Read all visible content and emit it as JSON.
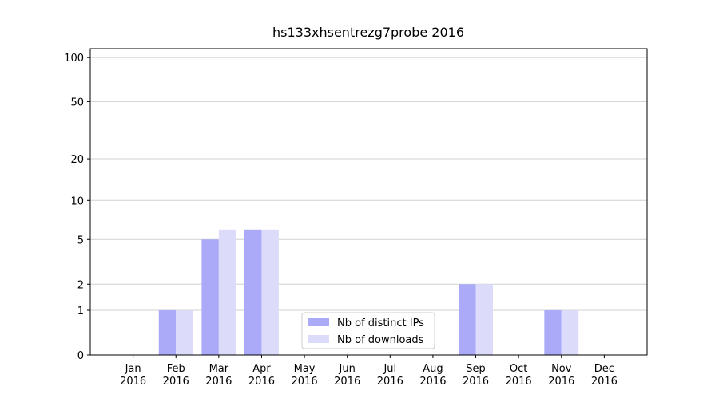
{
  "chart_data": {
    "type": "bar",
    "title": "hs133xhsentrezg7probe 2016",
    "categories": [
      "Jan 2016",
      "Feb 2016",
      "Mar 2016",
      "Apr 2016",
      "May 2016",
      "Jun 2016",
      "Jul 2016",
      "Aug 2016",
      "Sep 2016",
      "Oct 2016",
      "Nov 2016",
      "Dec 2016"
    ],
    "series": [
      {
        "name": "Nb of distinct IPs",
        "color": "#aaaaf8",
        "values": [
          0,
          1,
          5,
          6,
          0,
          0,
          0,
          0,
          2,
          0,
          1,
          0
        ]
      },
      {
        "name": "Nb of downloads",
        "color": "#dcdcfa",
        "values": [
          0,
          1,
          6,
          6,
          0,
          0,
          0,
          0,
          2,
          0,
          1,
          0
        ]
      }
    ],
    "yscale": "log1p",
    "ylim": [
      0,
      115
    ],
    "yticks": [
      0,
      1,
      2,
      5,
      10,
      20,
      50,
      100
    ],
    "grid": true,
    "legend": "lower center"
  }
}
